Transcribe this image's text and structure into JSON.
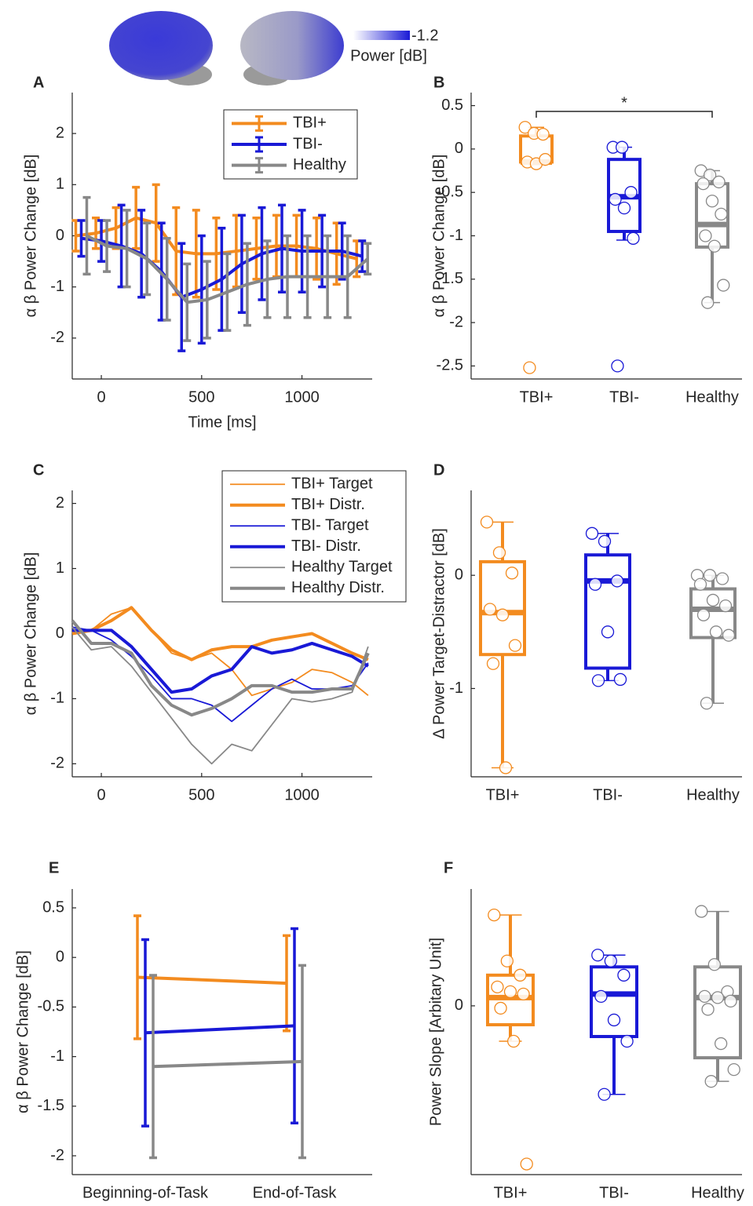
{
  "colorbar": {
    "tick": "-1.2",
    "label": "Power [dB]"
  },
  "chart_data": [
    {
      "type": "line",
      "panel": "A",
      "ylabel": "α β Power Change [dB]",
      "xlabel": "Time [ms]",
      "x": [
        -100,
        0,
        100,
        200,
        300,
        400,
        500,
        600,
        700,
        800,
        900,
        1000,
        1100,
        1200,
        1300
      ],
      "xlim": [
        -145,
        1350
      ],
      "xticks": [
        0,
        500,
        1000
      ],
      "ylim": [
        -2.8,
        2.8
      ],
      "yticks": [
        -2,
        -1,
        0,
        1,
        2
      ],
      "legend": "upper right",
      "series": [
        {
          "name": "TBI+",
          "color": "#f38b1f",
          "width": 4,
          "values": [
            0,
            0.05,
            0.15,
            0.35,
            0.25,
            -0.3,
            -0.35,
            -0.35,
            -0.3,
            -0.25,
            -0.2,
            -0.2,
            -0.25,
            -0.35,
            -0.45
          ],
          "errors": [
            0.3,
            0.3,
            0.4,
            0.6,
            0.75,
            0.85,
            0.85,
            0.7,
            0.7,
            0.6,
            0.6,
            0.6,
            0.6,
            0.6,
            0.35
          ]
        },
        {
          "name": "TBI-",
          "color": "#1919d6",
          "width": 4,
          "values": [
            -0.05,
            -0.1,
            -0.2,
            -0.35,
            -0.7,
            -1.2,
            -1.05,
            -0.85,
            -0.55,
            -0.35,
            -0.25,
            -0.3,
            -0.3,
            -0.3,
            -0.4
          ],
          "errors": [
            0.35,
            0.4,
            0.8,
            0.85,
            0.95,
            1.05,
            1.05,
            1.0,
            0.95,
            0.9,
            0.85,
            0.8,
            0.7,
            0.55,
            0.3
          ]
        },
        {
          "name": "Healthy",
          "color": "#888888",
          "width": 4,
          "values": [
            0,
            -0.2,
            -0.25,
            -0.45,
            -0.85,
            -1.3,
            -1.25,
            -1.1,
            -0.95,
            -0.85,
            -0.8,
            -0.8,
            -0.8,
            -0.8,
            -0.45
          ],
          "errors": [
            0.75,
            0.5,
            0.75,
            0.7,
            0.8,
            0.75,
            0.75,
            0.75,
            0.8,
            0.75,
            0.8,
            0.8,
            0.8,
            0.8,
            0.3
          ]
        }
      ]
    },
    {
      "type": "box",
      "panel": "B",
      "ylabel": "α β Power Change [dB]",
      "annotation": "*",
      "categories": [
        "TBI+",
        "TBI-",
        "Healthy"
      ],
      "ylim": [
        -2.65,
        0.65
      ],
      "yticks": [
        -2.5,
        -2,
        -1.5,
        -1,
        -0.5,
        0,
        0.5
      ],
      "boxes": [
        {
          "color": "#f38b1f",
          "min": -0.18,
          "q1": -0.15,
          "median": -0.15,
          "q3": 0.15,
          "max": 0.25,
          "points": [
            0.25,
            0.18,
            0.17,
            -0.15,
            -0.17,
            -0.12,
            -2.52
          ]
        },
        {
          "color": "#1919d6",
          "min": -1.05,
          "q1": -0.95,
          "median": -0.55,
          "q3": -0.12,
          "max": 0.02,
          "points": [
            0.02,
            0.02,
            -0.5,
            -0.58,
            -0.68,
            -1.03,
            -2.5
          ]
        },
        {
          "color": "#888888",
          "min": -1.77,
          "q1": -1.13,
          "median": -0.87,
          "q3": -0.4,
          "max": -0.25,
          "points": [
            -0.25,
            -0.3,
            -0.38,
            -0.4,
            -0.6,
            -0.75,
            -1.0,
            -1.12,
            -1.57,
            -1.77
          ]
        }
      ]
    },
    {
      "type": "line",
      "panel": "C",
      "ylabel": "α β Power Change [dB]",
      "x": [
        -145,
        -50,
        50,
        150,
        250,
        350,
        450,
        550,
        650,
        750,
        850,
        950,
        1050,
        1150,
        1250,
        1330
      ],
      "xlim": [
        -145,
        1350
      ],
      "xticks": [
        0,
        500,
        1000
      ],
      "ylim": [
        -2.2,
        2.2
      ],
      "yticks": [
        -2,
        -1,
        0,
        1,
        2
      ],
      "legend": "upper right",
      "series": [
        {
          "name": "TBI+ Target",
          "color": "#f38b1f",
          "width": 1.8,
          "values": [
            0.05,
            0.05,
            0.3,
            0.4,
            0.05,
            -0.3,
            -0.4,
            -0.3,
            -0.55,
            -0.95,
            -0.85,
            -0.75,
            -0.55,
            -0.6,
            -0.75,
            -0.95
          ]
        },
        {
          "name": "TBI+ Distr.",
          "color": "#f38b1f",
          "width": 4,
          "values": [
            0,
            0.05,
            0.2,
            0.4,
            0.05,
            -0.25,
            -0.4,
            -0.25,
            -0.2,
            -0.2,
            -0.1,
            -0.05,
            0,
            -0.15,
            -0.3,
            -0.4
          ]
        },
        {
          "name": "TBI- Target",
          "color": "#1919d6",
          "width": 1.8,
          "values": [
            0.1,
            0.05,
            -0.1,
            -0.35,
            -0.65,
            -1.0,
            -1.0,
            -1.1,
            -1.35,
            -1.1,
            -0.85,
            -0.7,
            -0.85,
            -0.85,
            -0.8,
            -0.45
          ]
        },
        {
          "name": "TBI- Distr.",
          "color": "#1919d6",
          "width": 4,
          "values": [
            0.05,
            0.05,
            0.05,
            -0.2,
            -0.55,
            -0.9,
            -0.85,
            -0.65,
            -0.55,
            -0.2,
            -0.3,
            -0.25,
            -0.15,
            -0.25,
            -0.35,
            -0.5
          ]
        },
        {
          "name": "Healthy Target",
          "color": "#888888",
          "width": 1.8,
          "values": [
            0.1,
            -0.25,
            -0.2,
            -0.5,
            -0.9,
            -1.3,
            -1.7,
            -2.0,
            -1.7,
            -1.8,
            -1.4,
            -1.0,
            -1.05,
            -1.0,
            -0.9,
            -0.2
          ]
        },
        {
          "name": "Healthy Distr.",
          "color": "#888888",
          "width": 4,
          "values": [
            0.2,
            -0.15,
            -0.15,
            -0.3,
            -0.8,
            -1.1,
            -1.25,
            -1.15,
            -1.0,
            -0.8,
            -0.8,
            -0.9,
            -0.9,
            -0.85,
            -0.85,
            -0.3
          ]
        }
      ]
    },
    {
      "type": "box",
      "panel": "D",
      "ylabel": "Δ Power Target-Distractor [dB]",
      "categories": [
        "TBI+",
        "TBI-",
        "Healthy"
      ],
      "ylim": [
        -1.78,
        0.75
      ],
      "yticks": [
        -1,
        0
      ],
      "boxes": [
        {
          "color": "#f38b1f",
          "min": -1.7,
          "q1": -0.7,
          "median": -0.33,
          "q3": 0.12,
          "max": 0.47,
          "points": [
            0.47,
            0.2,
            0.02,
            -0.3,
            -0.35,
            -0.62,
            -0.78,
            -1.7
          ]
        },
        {
          "color": "#1919d6",
          "min": -0.93,
          "q1": -0.82,
          "median": -0.05,
          "q3": 0.18,
          "max": 0.37,
          "points": [
            0.37,
            0.3,
            -0.05,
            -0.08,
            -0.5,
            -0.92,
            -0.93
          ]
        },
        {
          "color": "#888888",
          "min": -1.13,
          "q1": -0.55,
          "median": -0.3,
          "q3": -0.12,
          "max": 0,
          "points": [
            0,
            0,
            -0.03,
            -0.08,
            -0.22,
            -0.27,
            -0.35,
            -0.5,
            -0.53,
            -1.13
          ]
        }
      ]
    },
    {
      "type": "line",
      "panel": "E",
      "ylabel": "α β Power Change [dB]",
      "categories": [
        "Beginning-of-Task",
        "End-of-Task"
      ],
      "ylim": [
        -2.19,
        0.69
      ],
      "yticks": [
        -2,
        -1.5,
        -1,
        -0.5,
        0,
        0.5
      ],
      "series": [
        {
          "name": "TBI+",
          "color": "#f38b1f",
          "width": 4,
          "values": [
            -0.2,
            -0.26
          ],
          "errors": [
            0.62,
            0.48
          ]
        },
        {
          "name": "TBI-",
          "color": "#1919d6",
          "width": 4,
          "values": [
            -0.76,
            -0.69
          ],
          "errors": [
            0.94,
            0.98
          ]
        },
        {
          "name": "Healthy",
          "color": "#888888",
          "width": 4,
          "values": [
            -1.1,
            -1.05
          ],
          "errors": [
            0.92,
            0.97
          ]
        }
      ]
    },
    {
      "type": "box",
      "panel": "F",
      "ylabel": "Power Slope [Arbitary Unit]",
      "categories": [
        "TBI+",
        "TBI-",
        "Healthy"
      ],
      "ylim": [
        -1.43,
        0.99
      ],
      "yticks": [
        0
      ],
      "boxes": [
        {
          "color": "#f38b1f",
          "min": -0.3,
          "q1": -0.16,
          "median": 0.07,
          "q3": 0.26,
          "max": 0.77,
          "points": [
            0.77,
            0.38,
            0.26,
            0.16,
            0.12,
            0.1,
            -0.02,
            -0.3,
            -1.34
          ]
        },
        {
          "color": "#1919d6",
          "min": -0.75,
          "q1": -0.26,
          "median": 0.1,
          "q3": 0.33,
          "max": 0.43,
          "points": [
            0.43,
            0.38,
            0.26,
            0.08,
            -0.12,
            -0.3,
            -0.75
          ]
        },
        {
          "color": "#888888",
          "min": -0.64,
          "q1": -0.44,
          "median": 0.07,
          "q3": 0.33,
          "max": 0.8,
          "points": [
            0.8,
            0.35,
            0.12,
            0.08,
            0.07,
            0.04,
            -0.03,
            -0.32,
            -0.54,
            -0.64
          ]
        }
      ]
    }
  ]
}
